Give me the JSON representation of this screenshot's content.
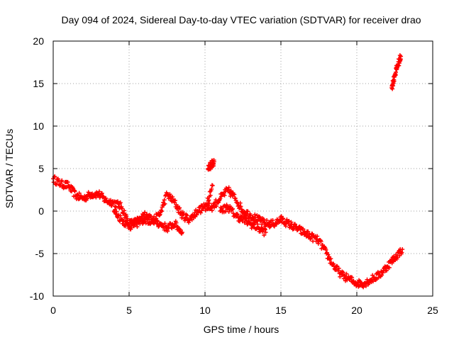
{
  "chart_data": {
    "type": "scatter",
    "title": "Day 094 of 2024, Sidereal Day-to-day VTEC variation (SDTVAR) for receiver drao",
    "xlabel": "GPS time / hours",
    "ylabel": "SDTVAR / TECUs",
    "xlim": [
      0,
      25
    ],
    "ylim": [
      -10,
      20
    ],
    "xticks": [
      0,
      5,
      10,
      15,
      20,
      25
    ],
    "yticks": [
      -10,
      -5,
      0,
      5,
      10,
      15,
      20
    ],
    "grid": true,
    "marker": "+",
    "color": "#ff0000",
    "series": [
      {
        "name": "SDTVAR",
        "bands": [
          {
            "x": [
              0.0,
              0.5,
              1.0,
              1.5,
              2.0,
              2.5,
              3.0,
              3.5,
              4.0,
              4.5,
              5.0,
              5.5,
              6.0,
              6.5,
              7.0,
              7.5,
              8.0,
              8.5,
              9.0,
              9.5,
              10.0,
              10.5
            ],
            "y": [
              3.8,
              3.2,
              3.0,
              1.8,
              1.5,
              2.0,
              2.0,
              1.2,
              1.0,
              0.5,
              -1.5,
              -1.2,
              -1.0,
              -1.2,
              -0.5,
              2.0,
              1.0,
              -0.5,
              -1.0,
              0.0,
              0.5,
              3.0
            ]
          },
          {
            "x": [
              4.0,
              4.5,
              5.0,
              5.5,
              6.0,
              6.5,
              7.0,
              7.5,
              8.0,
              8.5
            ],
            "y": [
              0.0,
              -1.0,
              -1.8,
              -1.5,
              -0.5,
              -1.0,
              -1.5,
              -2.0,
              -1.5,
              -2.5
            ]
          },
          {
            "x": [
              10.0,
              10.5,
              11.0,
              11.5,
              12.0,
              12.5,
              13.0,
              13.5,
              14.0,
              14.5,
              15.0,
              15.5,
              16.0,
              16.5,
              17.0,
              17.5,
              18.0,
              18.5,
              19.0,
              19.5,
              20.0,
              20.5,
              21.0,
              21.5,
              22.0,
              22.5,
              23.0
            ],
            "y": [
              0.5,
              0.5,
              1.5,
              2.5,
              1.5,
              0.0,
              -0.5,
              -1.0,
              -1.5,
              -1.5,
              -1.0,
              -1.5,
              -2.0,
              -2.5,
              -3.0,
              -3.5,
              -5.0,
              -6.5,
              -7.5,
              -8.0,
              -8.5,
              -8.5,
              -8.0,
              -7.5,
              -6.5,
              -5.5,
              -4.5
            ]
          },
          {
            "x": [
              11.0,
              11.5,
              12.0,
              12.5,
              13.0,
              13.5,
              14.0
            ],
            "y": [
              0.0,
              0.5,
              -0.5,
              -1.0,
              -1.5,
              -2.0,
              -2.5
            ]
          },
          {
            "x": [
              10.2,
              10.4,
              10.6
            ],
            "y": [
              5.0,
              5.4,
              5.8
            ]
          },
          {
            "x": [
              22.3,
              22.5,
              22.7,
              22.9
            ],
            "y": [
              14.5,
              16.0,
              17.2,
              18.2
            ]
          }
        ]
      }
    ]
  }
}
